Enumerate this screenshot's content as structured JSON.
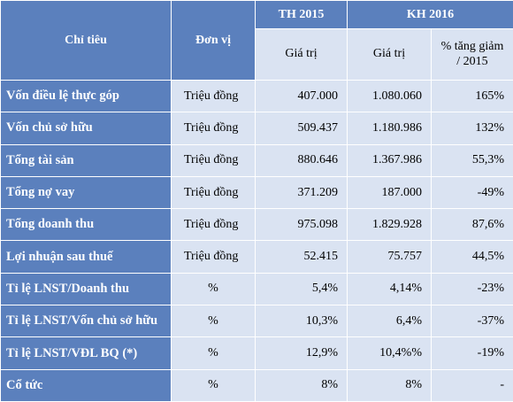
{
  "header": {
    "indicator": "Chỉ tiêu",
    "unit": "Đơn vị",
    "th2015": "TH 2015",
    "kh2016": "KH 2016",
    "sub_value_2015": "Giá trị",
    "sub_value_2016": "Giá trị",
    "sub_change": "% tăng giảm / 2015"
  },
  "rows": [
    {
      "label": "Vốn điều lệ thực góp",
      "unit": "Triệu đồng",
      "th2015": "407.000",
      "kh2016": "1.080.060",
      "change": "165%"
    },
    {
      "label": "Vốn chủ sở hữu",
      "unit": "Triệu đồng",
      "th2015": "509.437",
      "kh2016": "1.180.986",
      "change": "132%"
    },
    {
      "label": "Tổng tài sản",
      "unit": "Triệu đồng",
      "th2015": "880.646",
      "kh2016": "1.367.986",
      "change": "55,3%"
    },
    {
      "label": "Tổng nợ vay",
      "unit": "Triệu đồng",
      "th2015": "371.209",
      "kh2016": "187.000",
      "change": "-49%"
    },
    {
      "label": "Tổng doanh thu",
      "unit": "Triệu đồng",
      "th2015": "975.098",
      "kh2016": "1.829.928",
      "change": "87,6%"
    },
    {
      "label": "Lợi nhuận sau thuế",
      "unit": "Triệu đồng",
      "th2015": "52.415",
      "kh2016": "75.757",
      "change": "44,5%"
    },
    {
      "label": "Tỉ lệ LNST/Doanh thu",
      "unit": "%",
      "th2015": "5,4%",
      "kh2016": "4,14%",
      "change": "-23%"
    },
    {
      "label": "Tỉ lệ LNST/Vốn chủ sở hữu",
      "unit": "%",
      "th2015": "10,3%",
      "kh2016": "6,4%",
      "change": "-37%"
    },
    {
      "label": "Tỉ lệ LNST/VĐL BQ (*)",
      "unit": "%",
      "th2015": "12,9%",
      "kh2016": "10,4%%",
      "change": "-19%"
    },
    {
      "label": "Cổ tức",
      "unit": "%",
      "th2015": "8%",
      "kh2016": "8%",
      "change": "-"
    }
  ]
}
